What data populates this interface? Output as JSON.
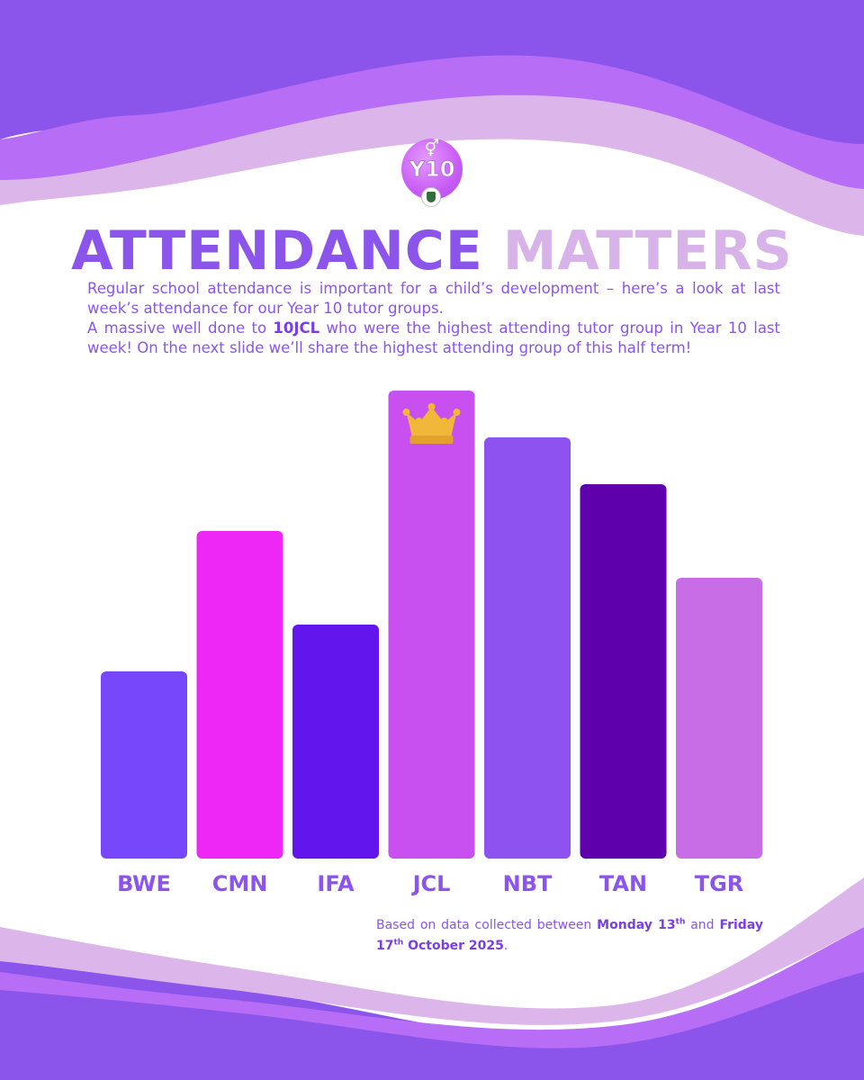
{
  "header": {
    "logo_text": "Y10",
    "logo_symbol": "⚥",
    "title_part1": "ATTENDANCE",
    "title_part2": "MATTERS"
  },
  "intro": {
    "line1": "Regular school attendance is important for a child’s development – here’s a look at last week’s attendance for our Year 10 tutor groups.",
    "line2_before": "A massive well done to ",
    "line2_highlight": "10JCL",
    "line2_after": " who were the highest attending tutor group in Year 10 last week! On the next slide we’ll share the highest attending group of this half term!"
  },
  "footnote": {
    "before": "Based on data collected between ",
    "date1_day": "Monday 13",
    "date1_sup": "th",
    "middle": " and ",
    "date2_day": "Friday 17",
    "date2_sup": "th",
    "date2_rest": " October 2025",
    "end": "."
  },
  "colors": {
    "purple_dark": "#8b55ec",
    "lilac": "#d7b3e9",
    "crown": "#f0b73b"
  },
  "chart_data": {
    "type": "bar",
    "title": "",
    "xlabel": "",
    "ylabel": "",
    "categories": [
      "BWE",
      "CMN",
      "IFA",
      "JCL",
      "NBT",
      "TAN",
      "TGR"
    ],
    "values": [
      40,
      70,
      50,
      100,
      90,
      80,
      60
    ],
    "value_unit": "relative bar height (% of tallest bar, no axis shown)",
    "ylim": [
      0,
      100
    ],
    "bar_colors": [
      "#7647fb",
      "#ee26f6",
      "#6316ec",
      "#c84ff0",
      "#8d52ef",
      "#5e00ab",
      "#c96de6"
    ],
    "highlight_category": "JCL",
    "highlight_icon": "crown-icon",
    "grid": false,
    "legend": "none"
  }
}
